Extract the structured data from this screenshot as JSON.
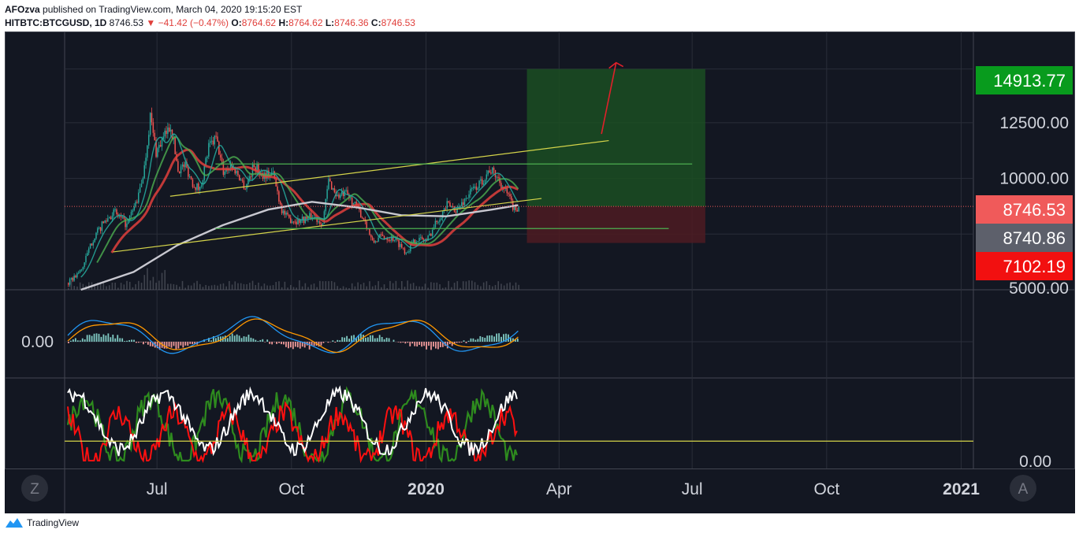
{
  "header": {
    "author": "AFOzva",
    "published_text": "published on TradingView.com, March 04, 2020 19:15:20 EST",
    "symbol": "HITBTC:BTCGUSD, 1D",
    "last": "8746.53",
    "change": "▼ −41.42 (−0.47%)",
    "o_label": "O:",
    "o_value": "8764.62",
    "h_label": "H:",
    "h_value": "8764.62",
    "l_label": "L:",
    "l_value": "8746.36",
    "c_label": "C:",
    "c_value": "8746.53"
  },
  "footer": {
    "brand": "TradingView"
  },
  "buttons": {
    "zoom": "Z",
    "auto": "A"
  },
  "colors": {
    "background": "#131722",
    "grid": "#2a2e39",
    "candle_up": "#26a69a",
    "candle_down": "#ef5350",
    "ma_fast": "#26a69a",
    "ma_mid": "#4caf50",
    "ma_slow": "#e0403c",
    "ma_200": "#c8c8d0",
    "trendline": "#d4d44a",
    "hline": "#4caf50",
    "target_zone": "#1b4d22",
    "stop_zone": "#4d1b22",
    "arrow": "#e0202a",
    "label_target": "#089b1d",
    "label_last": "#f05a5a",
    "label_mid": "#5d606b",
    "label_stop": "#f21010"
  },
  "chart_data": [
    {
      "type": "line",
      "pane": "price",
      "x_ticks": [
        "Jul",
        "Oct",
        "2020",
        "Apr",
        "Jul",
        "Oct",
        "2021"
      ],
      "y_ticks": [
        "12500.00",
        "10000.00",
        "5000.00"
      ],
      "price_labels": [
        {
          "text": "14913.77",
          "value": 14913.77
        },
        {
          "text": "8746.53",
          "value": 8746.53
        },
        {
          "text": "8740.86",
          "value": 8740.86
        },
        {
          "text": "7102.19",
          "value": 7102.19
        }
      ],
      "ylim": [
        5000,
        16600
      ],
      "series_points": [
        [
          "2019-05-01",
          5300
        ],
        [
          "2019-05-10",
          5900
        ],
        [
          "2019-05-18",
          7300
        ],
        [
          "2019-05-25",
          8000
        ],
        [
          "2019-06-01",
          8500
        ],
        [
          "2019-06-10",
          7900
        ],
        [
          "2019-06-18",
          9200
        ],
        [
          "2019-06-22",
          10500
        ],
        [
          "2019-06-26",
          12800
        ],
        [
          "2019-06-30",
          11200
        ],
        [
          "2019-07-05",
          11800
        ],
        [
          "2019-07-10",
          12400
        ],
        [
          "2019-07-15",
          10400
        ],
        [
          "2019-07-20",
          10600
        ],
        [
          "2019-07-25",
          9800
        ],
        [
          "2019-07-30",
          9500
        ],
        [
          "2019-08-05",
          11400
        ],
        [
          "2019-08-10",
          11800
        ],
        [
          "2019-08-15",
          10300
        ],
        [
          "2019-08-20",
          10600
        ],
        [
          "2019-08-25",
          10200
        ],
        [
          "2019-08-30",
          9600
        ],
        [
          "2019-09-05",
          10600
        ],
        [
          "2019-09-10",
          10200
        ],
        [
          "2019-09-18",
          10200
        ],
        [
          "2019-09-24",
          8600
        ],
        [
          "2019-09-28",
          8200
        ],
        [
          "2019-10-05",
          8100
        ],
        [
          "2019-10-15",
          8300
        ],
        [
          "2019-10-22",
          8000
        ],
        [
          "2019-10-26",
          9900
        ],
        [
          "2019-11-01",
          9200
        ],
        [
          "2019-11-07",
          9300
        ],
        [
          "2019-11-14",
          8700
        ],
        [
          "2019-11-20",
          8100
        ],
        [
          "2019-11-25",
          7100
        ],
        [
          "2019-12-01",
          7400
        ],
        [
          "2019-12-10",
          7300
        ],
        [
          "2019-12-18",
          6700
        ],
        [
          "2019-12-25",
          7300
        ],
        [
          "2020-01-01",
          7200
        ],
        [
          "2020-01-08",
          8100
        ],
        [
          "2020-01-15",
          8800
        ],
        [
          "2020-01-22",
          8600
        ],
        [
          "2020-01-31",
          9400
        ],
        [
          "2020-02-07",
          9800
        ],
        [
          "2020-02-13",
          10400
        ],
        [
          "2020-02-18",
          10100
        ],
        [
          "2020-02-25",
          9300
        ],
        [
          "2020-03-01",
          8600
        ],
        [
          "2020-03-04",
          8746
        ]
      ],
      "ma_200_points": [
        [
          "2019-05-10",
          5000
        ],
        [
          "2019-06-15",
          5800
        ],
        [
          "2019-07-15",
          7000
        ],
        [
          "2019-08-15",
          7900
        ],
        [
          "2019-09-15",
          8600
        ],
        [
          "2019-10-15",
          8950
        ],
        [
          "2019-11-15",
          8700
        ],
        [
          "2019-12-15",
          8350
        ],
        [
          "2020-01-15",
          8300
        ],
        [
          "2020-02-15",
          8600
        ],
        [
          "2020-03-04",
          8800
        ]
      ],
      "trendlines": [
        {
          "from": [
            "2019-06-01",
            6700
          ],
          "to": [
            "2020-03-20",
            9100
          ]
        },
        {
          "from": [
            "2019-07-10",
            9200
          ],
          "to": [
            "2020-05-05",
            11700
          ]
        }
      ],
      "horizontal_lines": [
        {
          "from": "2019-08-10",
          "to": "2020-07-01",
          "value": 10650
        },
        {
          "from": "2019-08-10",
          "to": "2020-06-15",
          "value": 7750
        }
      ],
      "target_zone": {
        "from": "2020-03-10",
        "to": "2020-07-10",
        "top": 14913.77,
        "bottom": 8740.86
      },
      "stop_zone": {
        "from": "2020-03-10",
        "to": "2020-07-10",
        "top": 8740.86,
        "bottom": 7102.19
      },
      "arrow": {
        "from": [
          "2020-04-30",
          12000
        ],
        "to": [
          "2020-05-10",
          15200
        ]
      }
    },
    {
      "type": "bar",
      "pane": "macd",
      "y_ticks": [
        "0.00"
      ],
      "ylim": [
        -1,
        1
      ]
    },
    {
      "type": "line",
      "pane": "oscillator",
      "y_ticks": [
        "0.00"
      ],
      "ylim": [
        0,
        100
      ],
      "threshold": 25
    }
  ]
}
